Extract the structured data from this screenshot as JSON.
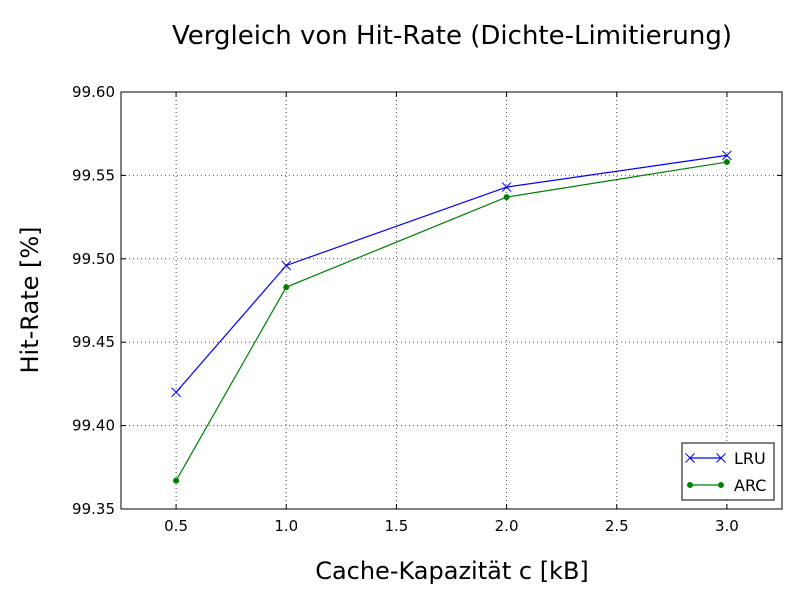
{
  "chart_data": {
    "type": "line",
    "title": "Vergleich von Hit-Rate (Dichte-Limitierung)",
    "xlabel": "Cache-Kapazität c [kB]",
    "ylabel": "Hit-Rate [%]",
    "xlim": [
      0.25,
      3.25
    ],
    "ylim": [
      99.35,
      99.6
    ],
    "xticks": [
      0.5,
      1.0,
      1.5,
      2.0,
      2.5,
      3.0
    ],
    "xtick_labels": [
      "0.5",
      "1.0",
      "1.5",
      "2.0",
      "2.5",
      "3.0"
    ],
    "yticks": [
      99.35,
      99.4,
      99.45,
      99.5,
      99.55,
      99.6
    ],
    "ytick_labels": [
      "99.35",
      "99.40",
      "99.45",
      "99.50",
      "99.55",
      "99.60"
    ],
    "grid": true,
    "legend_position": "bottom-right",
    "series": [
      {
        "name": "LRU",
        "color": "#0000ff",
        "marker": "x",
        "x": [
          0.5,
          1.0,
          2.0,
          3.0
        ],
        "y": [
          99.42,
          99.496,
          99.543,
          99.562
        ]
      },
      {
        "name": "ARC",
        "color": "#008000",
        "marker": "dot",
        "x": [
          0.5,
          1.0,
          2.0,
          3.0
        ],
        "y": [
          99.367,
          99.483,
          99.537,
          99.558
        ]
      }
    ]
  }
}
